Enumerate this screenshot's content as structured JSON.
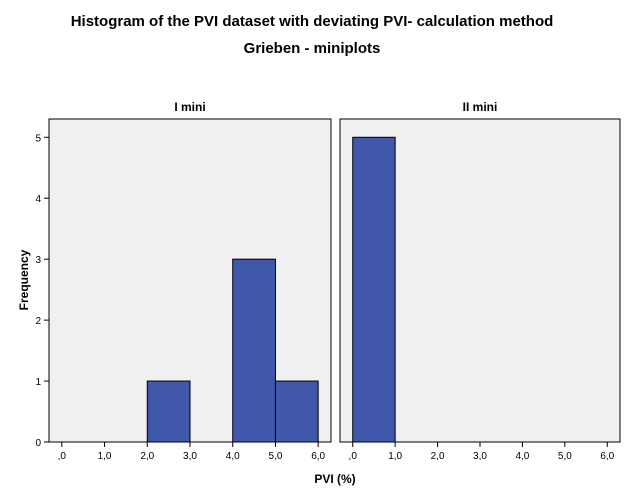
{
  "chart_data": {
    "type": "bar",
    "title": "Histogram of the PVI dataset with deviating PVI- calculation method",
    "subtitle": "Grieben - miniplots",
    "xlabel": "PVI (%)",
    "ylabel": "Frequency",
    "xlim": [
      -0.3,
      6.3
    ],
    "ylim": [
      0,
      5.3
    ],
    "x_ticks": [
      ",0",
      "1,0",
      "2,0",
      "3,0",
      "4,0",
      "5,0",
      "6,0"
    ],
    "y_ticks": [
      "0",
      "1",
      "2",
      "3",
      "4",
      "5"
    ],
    "grid": false,
    "bar_color": "#3f58aa",
    "panel_background": "#f0f0f0",
    "panels": [
      {
        "name": "I mini",
        "bins": [
          {
            "x0": 2,
            "x1": 3,
            "count": 1
          },
          {
            "x0": 4,
            "x1": 5,
            "count": 3
          },
          {
            "x0": 5,
            "x1": 6,
            "count": 1
          }
        ]
      },
      {
        "name": "II mini",
        "bins": [
          {
            "x0": 0,
            "x1": 1,
            "count": 5
          }
        ]
      }
    ]
  }
}
